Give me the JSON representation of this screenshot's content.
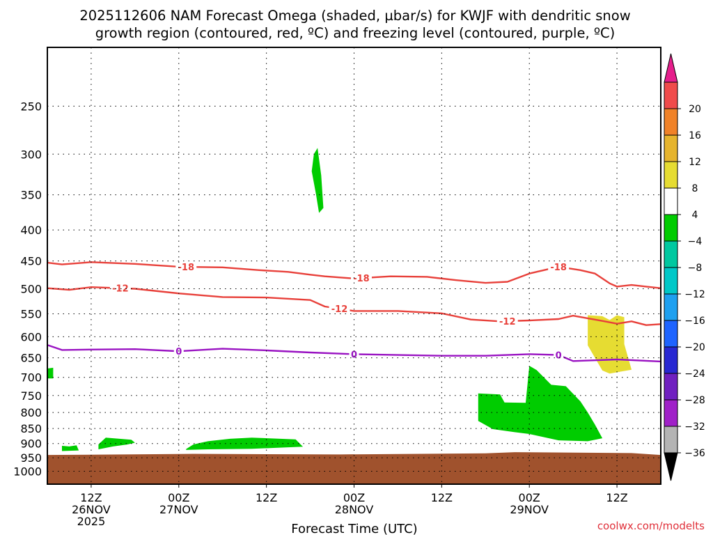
{
  "title_line1": "2025112606 NAM Forecast Omega (shaded, µbar/s) for KWJF with dendritic snow",
  "title_line2": "growth region (contoured, red, ºC) and freezing level (contoured, purple, ºC)",
  "credit": "coolwx.com/modelts",
  "chart_data": {
    "type": "contour",
    "title": "2025112606 NAM Forecast Omega (shaded, µbar/s) for KWJF with dendritic snow growth region (contoured, red, ºC) and freezing level (contoured, purple, ºC)",
    "xlabel": "Forecast Time (UTC)",
    "ylabel": "",
    "x_unit": "forecast hour from 2025112606",
    "xlim": [
      0,
      84
    ],
    "ylim_hpa": [
      1050,
      200
    ],
    "y_scale": "log-pressure",
    "grid": true,
    "x_ticks": [
      {
        "hour": 6,
        "label": "12Z",
        "date": "26NOV",
        "year": "2025"
      },
      {
        "hour": 18,
        "label": "00Z",
        "date": "27NOV",
        "year": ""
      },
      {
        "hour": 30,
        "label": "12Z",
        "date": "",
        "year": ""
      },
      {
        "hour": 42,
        "label": "00Z",
        "date": "28NOV",
        "year": ""
      },
      {
        "hour": 54,
        "label": "12Z",
        "date": "",
        "year": ""
      },
      {
        "hour": 66,
        "label": "00Z",
        "date": "29NOV",
        "year": ""
      },
      {
        "hour": 78,
        "label": "12Z",
        "date": "",
        "year": ""
      }
    ],
    "y_ticks": [
      250,
      300,
      350,
      400,
      450,
      500,
      550,
      600,
      650,
      700,
      750,
      800,
      850,
      900,
      950,
      1000
    ],
    "colorbar": {
      "levels": [
        -36,
        -32,
        -28,
        -24,
        -20,
        -16,
        -12,
        -8,
        -4,
        4,
        8,
        12,
        16,
        20
      ],
      "colors": [
        "#b4b4b4",
        "#a020c8",
        "#7020c0",
        "#2828d2",
        "#1e64ff",
        "#1ea0f0",
        "#00c8c8",
        "#00c8a0",
        "#00cc00",
        "#ffffff",
        "#e6dc32",
        "#e6b42d",
        "#f08228",
        "#f04b4b"
      ],
      "under_color": "#000000",
      "over_color": "#e61e8c"
    },
    "contours": [
      {
        "value": -18,
        "color": "#e8403a",
        "label": "-18",
        "label_at": [
          19,
          43,
          70
        ],
        "points": [
          [
            0,
            453
          ],
          [
            2,
            456
          ],
          [
            6,
            452
          ],
          [
            12,
            455
          ],
          [
            18,
            460
          ],
          [
            24,
            461
          ],
          [
            29,
            466
          ],
          [
            33,
            469
          ],
          [
            36,
            474
          ],
          [
            38,
            477
          ],
          [
            42,
            481
          ],
          [
            47,
            477
          ],
          [
            52,
            478
          ],
          [
            56,
            484
          ],
          [
            60,
            489
          ],
          [
            63,
            487
          ],
          [
            66,
            472
          ],
          [
            70,
            460
          ],
          [
            73,
            466
          ],
          [
            75,
            472
          ],
          [
            77,
            490
          ],
          [
            78,
            496
          ],
          [
            80,
            493
          ],
          [
            82,
            496
          ],
          [
            84,
            499
          ]
        ]
      },
      {
        "value": -12,
        "color": "#e8403a",
        "label": "-12",
        "label_at": [
          10,
          40,
          63
        ],
        "points": [
          [
            0,
            499
          ],
          [
            3,
            502
          ],
          [
            6,
            497
          ],
          [
            12,
            500
          ],
          [
            18,
            509
          ],
          [
            24,
            516
          ],
          [
            30,
            517
          ],
          [
            36,
            522
          ],
          [
            38,
            535
          ],
          [
            42,
            544
          ],
          [
            48,
            544
          ],
          [
            54,
            549
          ],
          [
            58,
            562
          ],
          [
            62,
            566
          ],
          [
            66,
            564
          ],
          [
            70,
            561
          ],
          [
            72,
            554
          ],
          [
            76,
            565
          ],
          [
            78,
            571
          ],
          [
            80,
            566
          ],
          [
            82,
            574
          ],
          [
            84,
            572
          ]
        ]
      },
      {
        "value": 0,
        "color": "#9912c2",
        "label": "0",
        "label_at": [
          18,
          42,
          70
        ],
        "points": [
          [
            0,
            619
          ],
          [
            2,
            631
          ],
          [
            6,
            630
          ],
          [
            12,
            629
          ],
          [
            18,
            634
          ],
          [
            24,
            628
          ],
          [
            30,
            632
          ],
          [
            36,
            637
          ],
          [
            42,
            641
          ],
          [
            48,
            643
          ],
          [
            54,
            645
          ],
          [
            60,
            645
          ],
          [
            66,
            641
          ],
          [
            70,
            643
          ],
          [
            72,
            658
          ],
          [
            78,
            654
          ],
          [
            84,
            659
          ]
        ]
      }
    ],
    "shaded_regions": [
      {
        "class": "-8 to -4",
        "color": "#00cc00",
        "points": [
          [
            36.5,
            300
          ],
          [
            37.0,
            293
          ],
          [
            37.5,
            325
          ],
          [
            37.8,
            368
          ],
          [
            37.2,
            375
          ],
          [
            36.8,
            350
          ],
          [
            36.2,
            320
          ]
        ]
      },
      {
        "class": "-8 to -4",
        "color": "#00cc00",
        "points": [
          [
            0,
            677
          ],
          [
            0.8,
            675
          ],
          [
            0.8,
            703
          ],
          [
            0,
            703
          ]
        ]
      },
      {
        "class": "-8 to -4",
        "color": "#00cc00",
        "points": [
          [
            2,
            908
          ],
          [
            3,
            910
          ],
          [
            4,
            906
          ],
          [
            4.3,
            924
          ],
          [
            2,
            926
          ]
        ]
      },
      {
        "class": "-8 to -4",
        "color": "#00cc00",
        "points": [
          [
            7,
            903
          ],
          [
            8,
            880
          ],
          [
            11.5,
            887
          ],
          [
            12,
            897
          ],
          [
            11,
            903
          ],
          [
            9,
            910
          ],
          [
            7,
            920
          ]
        ]
      },
      {
        "class": "-8 to -4",
        "color": "#00cc00",
        "points": [
          [
            19,
            919
          ],
          [
            20,
            903
          ],
          [
            22,
            892
          ],
          [
            25,
            884
          ],
          [
            28,
            880
          ],
          [
            34,
            886
          ],
          [
            35,
            911
          ],
          [
            28,
            918
          ],
          [
            22,
            920
          ],
          [
            19,
            922
          ]
        ]
      },
      {
        "class": "-8 to -4",
        "color": "#00cc00",
        "points": [
          [
            59,
            744
          ],
          [
            62,
            747
          ],
          [
            62.6,
            770
          ],
          [
            65.5,
            771
          ],
          [
            66,
            670
          ],
          [
            67,
            681
          ],
          [
            69,
            720
          ],
          [
            71,
            724
          ],
          [
            73,
            767
          ],
          [
            74,
            800
          ],
          [
            75,
            838
          ],
          [
            76,
            882
          ],
          [
            74,
            892
          ],
          [
            70,
            889
          ],
          [
            66,
            868
          ],
          [
            64,
            862
          ],
          [
            61,
            852
          ],
          [
            59,
            826
          ]
        ]
      },
      {
        "class": "4 to 8",
        "color": "#e6dc32",
        "points": [
          [
            74,
            553
          ],
          [
            76,
            555
          ],
          [
            77,
            563
          ],
          [
            78,
            553
          ],
          [
            79,
            557
          ],
          [
            79,
            617
          ],
          [
            80,
            680
          ],
          [
            77,
            690
          ],
          [
            76,
            682
          ],
          [
            74,
            620
          ],
          [
            74,
            590
          ]
        ]
      }
    ],
    "terrain": {
      "color": "#a0522d",
      "top_hpa": [
        [
          0,
          940
        ],
        [
          20,
          936
        ],
        [
          40,
          938
        ],
        [
          60,
          934
        ],
        [
          64,
          930
        ],
        [
          80,
          933
        ],
        [
          84,
          940
        ]
      ]
    }
  }
}
